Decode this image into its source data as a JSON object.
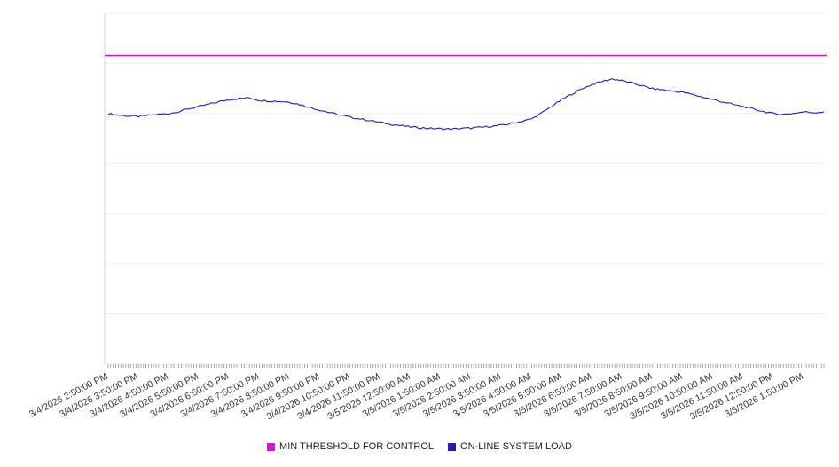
{
  "chart_data": {
    "type": "line",
    "title": "",
    "xlabel": "",
    "ylabel": "",
    "ylim": [
      0,
      100
    ],
    "grid": "horizontal",
    "legend_position": "bottom-center",
    "x_tick_labels": [
      "3/4/2026 2:50:00 PM",
      "3/4/2026 3:50:00 PM",
      "3/4/2026 4:50:00 PM",
      "3/4/2026 5:50:00 PM",
      "3/4/2026 6:50:00 PM",
      "3/4/2026 7:50:00 PM",
      "3/4/2026 8:50:00 PM",
      "3/4/2026 9:50:00 PM",
      "3/4/2026 10:50:00 PM",
      "3/4/2026 11:50:00 PM",
      "3/5/2026 12:50:00 AM",
      "3/5/2026 1:50:00 AM",
      "3/5/2026 2:50:00 AM",
      "3/5/2026 3:50:00 AM",
      "3/5/2026 4:50:00 AM",
      "3/5/2026 5:50:00 AM",
      "3/5/2026 6:50:00 AM",
      "3/5/2026 7:50:00 AM",
      "3/5/2026 8:50:00 AM",
      "3/5/2026 9:50:00 AM",
      "3/5/2026 10:50:00 AM",
      "3/5/2026 11:50:00 AM",
      "3/5/2026 12:50:00 PM",
      "3/5/2026 1:50:00 PM"
    ],
    "series": [
      {
        "name": "MIN THRESHOLD FOR CONTROL",
        "kind": "threshold",
        "color": "#ee00ee",
        "value": 88
      },
      {
        "name": "ON-LINE SYSTEM LOAD",
        "kind": "line",
        "color": "#1c1cc4",
        "x_step_hours": 0.3333,
        "values": [
          71.4,
          71.0,
          70.7,
          70.6,
          70.9,
          71.2,
          71.4,
          72.0,
          72.8,
          73.4,
          74.1,
          74.8,
          75.4,
          75.7,
          75.9,
          75.2,
          75.0,
          74.9,
          74.7,
          74.0,
          73.2,
          72.4,
          71.7,
          71.0,
          70.4,
          69.9,
          69.4,
          68.9,
          68.4,
          68.0,
          67.6,
          67.4,
          67.2,
          67.1,
          67.0,
          67.2,
          67.3,
          67.5,
          67.8,
          68.1,
          68.6,
          69.2,
          69.9,
          71.6,
          73.5,
          75.4,
          77.0,
          78.5,
          79.7,
          80.6,
          81.3,
          80.8,
          80.1,
          79.3,
          78.5,
          78.2,
          77.8,
          77.5,
          76.8,
          76.1,
          75.4,
          74.7,
          74.0,
          73.4,
          72.7,
          72.0,
          71.4,
          71.2,
          71.5,
          71.9,
          71.7,
          71.9
        ]
      }
    ]
  }
}
